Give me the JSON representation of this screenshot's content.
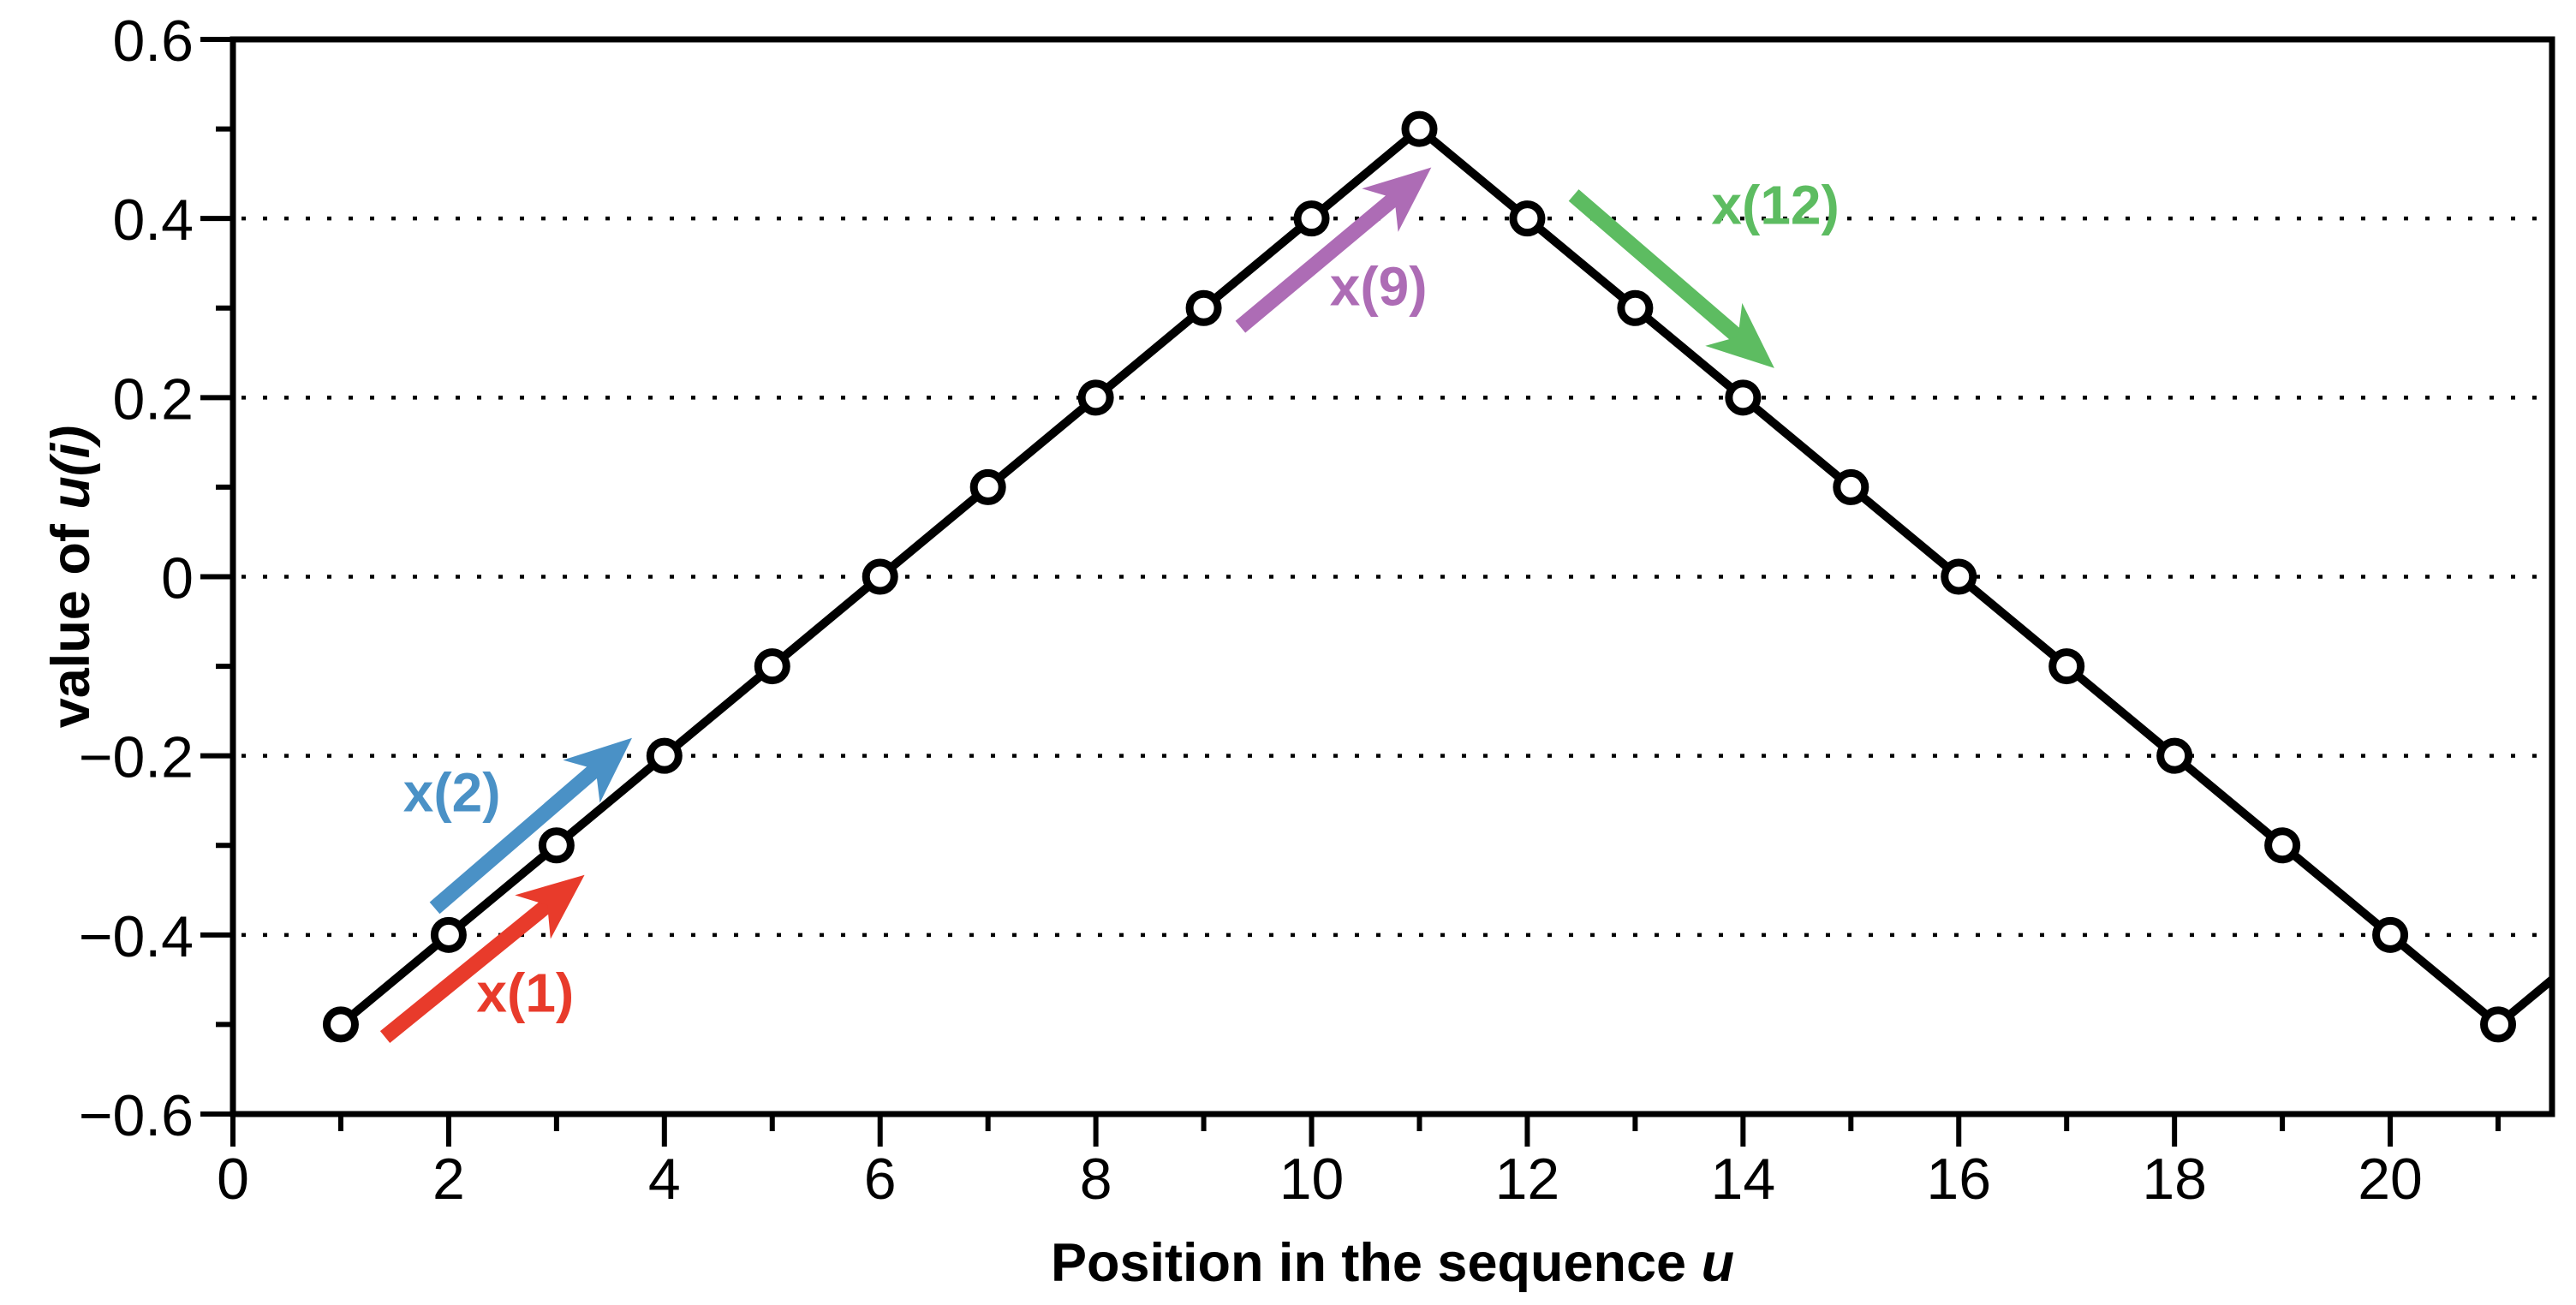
{
  "figure": {
    "background": "#ffffff",
    "xlabel": {
      "main": "Position in the sequence ",
      "italic": "u"
    },
    "ylabel": {
      "main": "value of ",
      "italic": "u(i)"
    }
  },
  "chart_data": {
    "type": "line",
    "title": "",
    "xlabel": "Position in the sequence u",
    "ylabel": "value of u(i)",
    "x": [
      1,
      2,
      3,
      4,
      5,
      6,
      7,
      8,
      9,
      10,
      11,
      12,
      13,
      14,
      15,
      16,
      17,
      18,
      19,
      20,
      21
    ],
    "values": [
      -0.5,
      -0.4,
      -0.3,
      -0.2,
      -0.1,
      0,
      0.1,
      0.2,
      0.3,
      0.4,
      0.5,
      0.4,
      0.3,
      0.2,
      0.1,
      0,
      -0.1,
      -0.2,
      -0.3,
      -0.4,
      -0.5
    ],
    "overflow_point": {
      "x": 21.5,
      "y": -0.45
    },
    "xlim": [
      0,
      21.5
    ],
    "ylim": [
      -0.6,
      0.6
    ],
    "x_major_ticks": [
      0,
      2,
      4,
      6,
      8,
      10,
      12,
      14,
      16,
      18,
      20
    ],
    "x_minor_ticks": [
      1,
      3,
      5,
      7,
      9,
      11,
      13,
      15,
      17,
      19,
      21
    ],
    "y_major_ticks": [
      0.6,
      0.4,
      0.2,
      0,
      -0.2,
      -0.4,
      -0.6
    ],
    "y_tick_labels": [
      "0.6",
      "0.4",
      "0.2",
      "0",
      "−0.2",
      "−0.4",
      "−0.6"
    ],
    "y_minor_ticks": [
      0.5,
      0.3,
      0.1,
      -0.1,
      -0.3,
      -0.5
    ],
    "gridlines_y": [
      0.4,
      0.2,
      0,
      -0.2,
      -0.4
    ],
    "grid_style": "dotted",
    "line_color": "#000000",
    "marker": "circle-open",
    "marker_fill": "#ffffff",
    "legend": "none",
    "annotations": [
      {
        "label": "x(1)",
        "color": "#e83b2b",
        "arrow_from": [
          1.41,
          -0.514
        ],
        "arrow_to": [
          3.26,
          -0.333
        ],
        "label_pos": [
          2.71,
          -0.463
        ]
      },
      {
        "label": "x(2)",
        "color": "#4a91c6",
        "arrow_from": [
          1.87,
          -0.37
        ],
        "arrow_to": [
          3.7,
          -0.18
        ],
        "label_pos": [
          2.03,
          -0.239
        ]
      },
      {
        "label": "x(9)",
        "color": "#ad6cb5",
        "arrow_from": [
          9.34,
          0.279
        ],
        "arrow_to": [
          11.11,
          0.457
        ],
        "label_pos": [
          10.62,
          0.326
        ]
      },
      {
        "label": "x(12)",
        "color": "#5dbc61",
        "arrow_from": [
          12.43,
          0.426
        ],
        "arrow_to": [
          14.29,
          0.233
        ],
        "label_pos": [
          14.3,
          0.417
        ]
      }
    ]
  }
}
